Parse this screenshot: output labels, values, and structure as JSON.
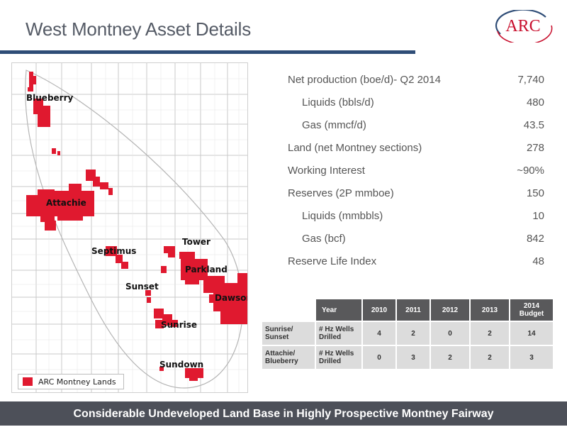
{
  "header": {
    "title": "West Montney Asset Details",
    "logo_text": "ARC"
  },
  "map": {
    "labels": {
      "blueberry": "Blueberry",
      "attachie": "Attachie",
      "septimus": "Septimus",
      "tower": "Tower",
      "parkland": "Parkland",
      "sunset": "Sunset",
      "dawson": "Dawson",
      "sunrise": "Sunrise",
      "sundown": "Sundown"
    },
    "legend": {
      "label": "ARC Montney Lands",
      "color": "#e0192f"
    }
  },
  "stats": [
    {
      "label": "Net production (boe/d)- Q2 2014",
      "value": "7,740"
    },
    {
      "label": "Liquids (bbls/d)",
      "value": "480"
    },
    {
      "label": "Gas (mmcf/d)",
      "value": "43.5"
    },
    {
      "label": "Land (net Montney sections)",
      "value": "278"
    },
    {
      "label": "Working Interest",
      "value": "~90%"
    },
    {
      "label": "Reserves (2P mmboe)",
      "value": "150"
    },
    {
      "label": "Liquids (mmbbls)",
      "value": "10"
    },
    {
      "label": "Gas (bcf)",
      "value": "842"
    },
    {
      "label": "Reserve Life Index",
      "value": "48"
    }
  ],
  "table": {
    "headers": [
      "Year",
      "2010",
      "2011",
      "2012",
      "2013",
      "2014 Budget"
    ],
    "rows": [
      {
        "area": "Sunrise/ Sunset",
        "metric": "# Hz Wells Drilled",
        "values": [
          "4",
          "2",
          "0",
          "2",
          "14"
        ]
      },
      {
        "area": "Attachie/ Blueberry",
        "metric": "# Hz Wells Drilled",
        "values": [
          "0",
          "3",
          "2",
          "2",
          "3"
        ]
      }
    ]
  },
  "footer": {
    "text": "Considerable Undeveloped Land Base in Highly Prospective Montney Fairway"
  },
  "colors": {
    "title_rule": "#2f4d77",
    "land": "#e0192f",
    "footer_bg": "#4d5059",
    "table_header": "#59595b"
  }
}
